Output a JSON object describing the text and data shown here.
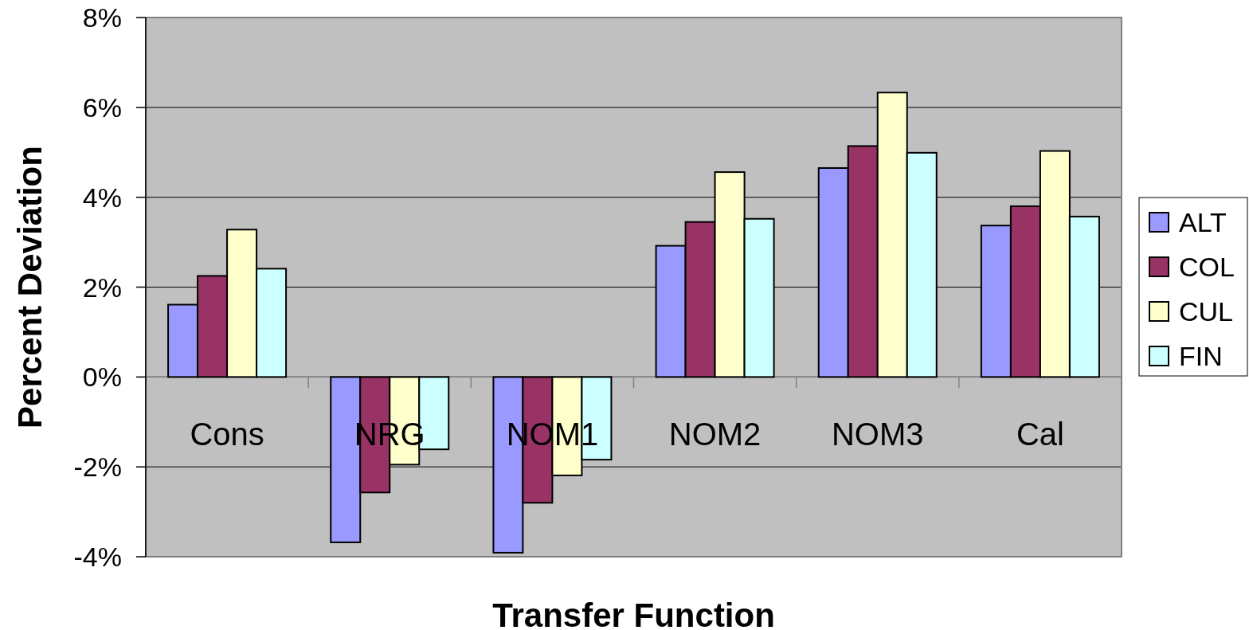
{
  "chart_data": {
    "type": "bar",
    "xlabel": "Transfer Function",
    "ylabel": "Percent Deviation",
    "categories": [
      "Cons",
      "NRG",
      "NOM1",
      "NOM2",
      "NOM3",
      "Cal"
    ],
    "series": [
      {
        "name": "ALT",
        "color": "#9999ff",
        "values": [
          1.61,
          -3.68,
          -3.91,
          2.92,
          4.65,
          3.37
        ]
      },
      {
        "name": "COL",
        "color": "#993366",
        "values": [
          2.25,
          -2.57,
          -2.8,
          3.45,
          5.14,
          3.8
        ]
      },
      {
        "name": "CUL",
        "color": "#ffffcc",
        "values": [
          3.28,
          -1.95,
          -2.19,
          4.56,
          6.33,
          5.03
        ]
      },
      {
        "name": "FIN",
        "color": "#ccffff",
        "values": [
          2.41,
          -1.61,
          -1.84,
          3.52,
          4.99,
          3.57
        ]
      }
    ],
    "ylim": [
      -4,
      8
    ],
    "yticks": [
      {
        "value": -4,
        "label": "-4%"
      },
      {
        "value": -2,
        "label": "-2%"
      },
      {
        "value": 0,
        "label": "0%"
      },
      {
        "value": 2,
        "label": "2%"
      },
      {
        "value": 4,
        "label": "4%"
      },
      {
        "value": 6,
        "label": "6%"
      },
      {
        "value": 8,
        "label": "8%"
      }
    ],
    "grid": "y",
    "legend": "right"
  }
}
